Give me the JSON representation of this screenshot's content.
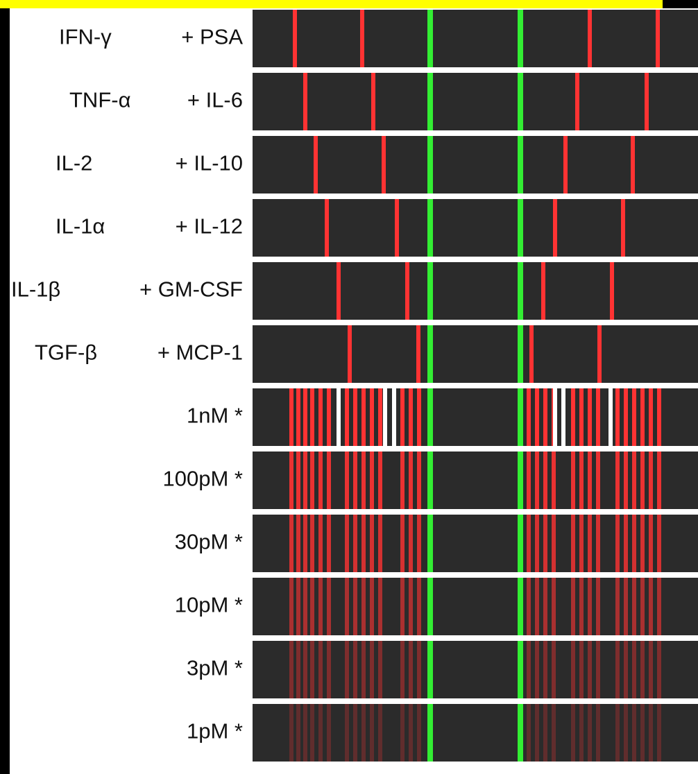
{
  "rows": [
    [
      "IFN-γ",
      "+ PSA"
    ],
    [
      "TNF-α",
      "+ IL-6"
    ],
    [
      "IL-2",
      "+ IL-10"
    ],
    [
      "IL-1α",
      "+ IL-12"
    ],
    [
      "IL-1β",
      "+ GM-CSF"
    ],
    [
      "TGF-β",
      "+ MCP-1"
    ],
    [
      "1nM *"
    ],
    [
      "100pM *"
    ],
    [
      "30pM *"
    ],
    [
      "10pM *"
    ],
    [
      "3pM *"
    ],
    [
      "1pM *"
    ]
  ]
}
